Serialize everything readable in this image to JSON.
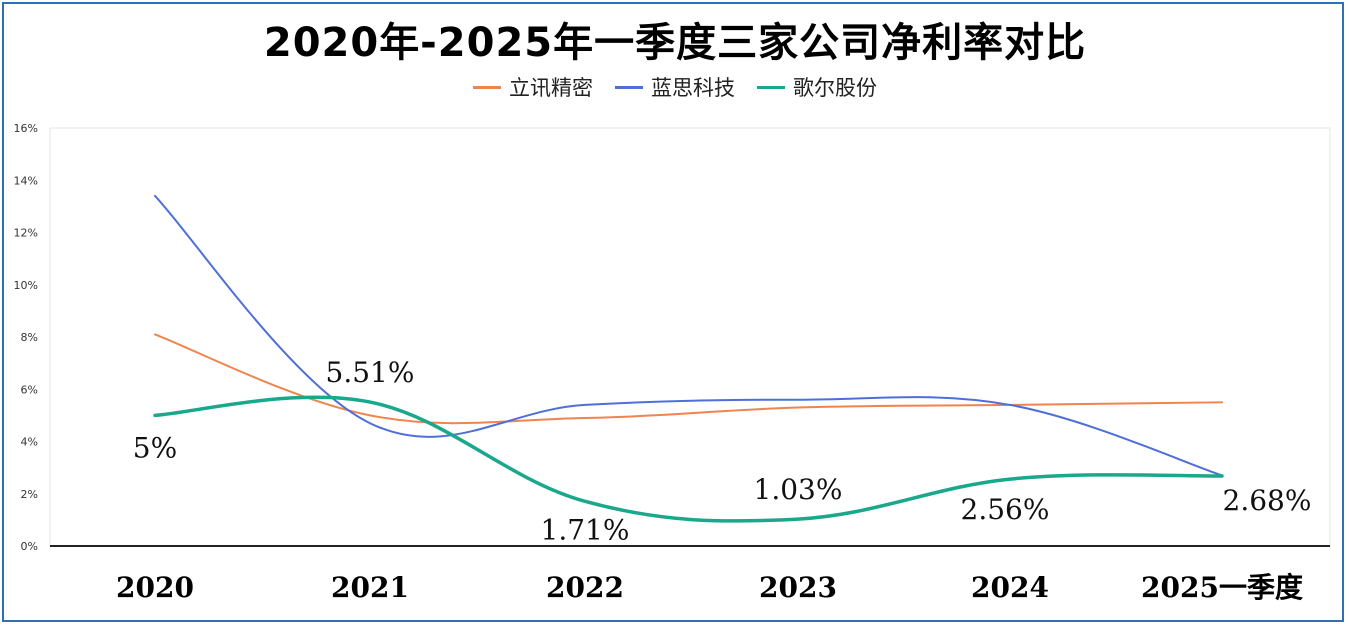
{
  "chart_data": {
    "type": "line",
    "title": "2020年-2025年一季度三家公司净利率对比",
    "categories": [
      "2020",
      "2021",
      "2022",
      "2023",
      "2024",
      "2025一季度"
    ],
    "ylim": [
      0,
      16
    ],
    "yticks": [
      "0%",
      "2%",
      "4%",
      "6%",
      "8%",
      "10%",
      "12%",
      "14%",
      "16%"
    ],
    "grid": false,
    "legend_position": "top",
    "series": [
      {
        "name": "立讯精密",
        "color": "#f0844f",
        "values": [
          8.1,
          5.0,
          4.9,
          5.3,
          5.4,
          5.5
        ]
      },
      {
        "name": "蓝思科技",
        "color": "#4f6fd8",
        "values": [
          13.4,
          4.7,
          5.4,
          5.6,
          5.4,
          2.7
        ]
      },
      {
        "name": "歌尔股份",
        "color": "#1aa88c",
        "values": [
          5.0,
          5.51,
          1.71,
          1.03,
          2.56,
          2.68
        ],
        "data_labels": [
          "5%",
          "5.51%",
          "1.71%",
          "1.03%",
          "2.56%",
          "2.68%"
        ]
      }
    ]
  }
}
